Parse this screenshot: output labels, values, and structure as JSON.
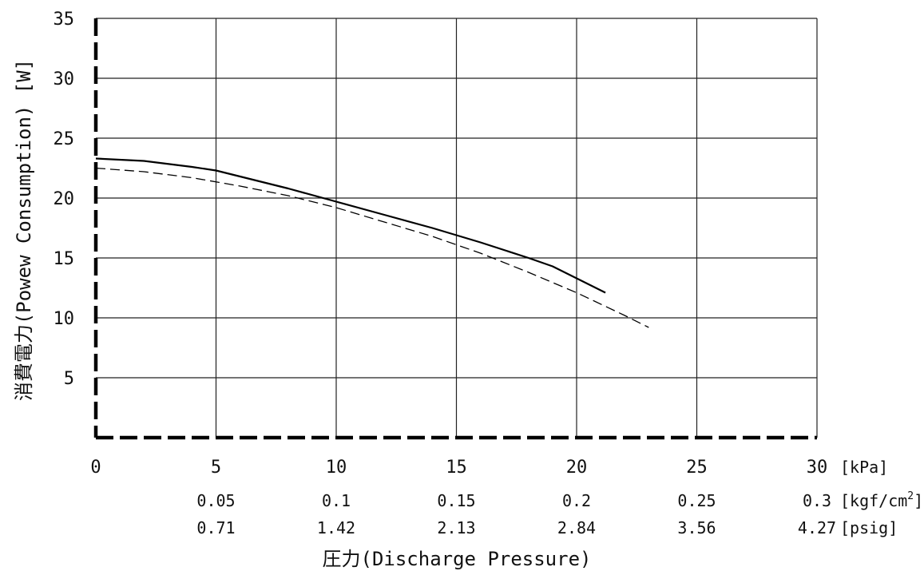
{
  "chart_data": {
    "type": "line",
    "xlabel": "圧力(Discharge Pressure)",
    "ylabel": "消費電力(Powew Consumption) [W]",
    "xlim": [
      0,
      30
    ],
    "ylim": [
      0,
      35
    ],
    "grid": true,
    "y_ticks": [
      "5",
      "10",
      "15",
      "20",
      "25",
      "30",
      "35"
    ],
    "x_ticks": [
      "0",
      "5",
      "10",
      "15",
      "20",
      "25",
      "30"
    ],
    "x_unit": "[kPa]",
    "secondary_rows": [
      {
        "unit_text": "[kgf/cm",
        "unit_sup": "2",
        "unit_close": "]",
        "values": [
          "0.05",
          "0.1",
          "0.15",
          "0.2",
          "0.25",
          "0.3"
        ]
      },
      {
        "unit_text": "[psig]",
        "unit_sup": "",
        "unit_close": "",
        "values": [
          "0.71",
          "1.42",
          "2.13",
          "2.84",
          "3.56",
          "4.27"
        ]
      }
    ],
    "series": [
      {
        "style": "solid",
        "x": [
          0,
          2,
          4,
          5,
          6,
          8,
          10,
          12,
          14,
          16,
          18,
          19,
          20,
          21.2
        ],
        "y": [
          23.3,
          23.1,
          22.6,
          22.3,
          21.8,
          20.8,
          19.7,
          18.6,
          17.5,
          16.3,
          15.0,
          14.3,
          13.3,
          12.1
        ]
      },
      {
        "style": "dashed",
        "x": [
          0,
          2,
          4,
          6,
          8,
          10,
          12,
          14,
          16,
          18,
          20,
          22,
          23
        ],
        "y": [
          22.5,
          22.2,
          21.7,
          21.0,
          20.2,
          19.2,
          18.0,
          16.8,
          15.4,
          13.8,
          12.1,
          10.2,
          9.2
        ]
      }
    ]
  }
}
